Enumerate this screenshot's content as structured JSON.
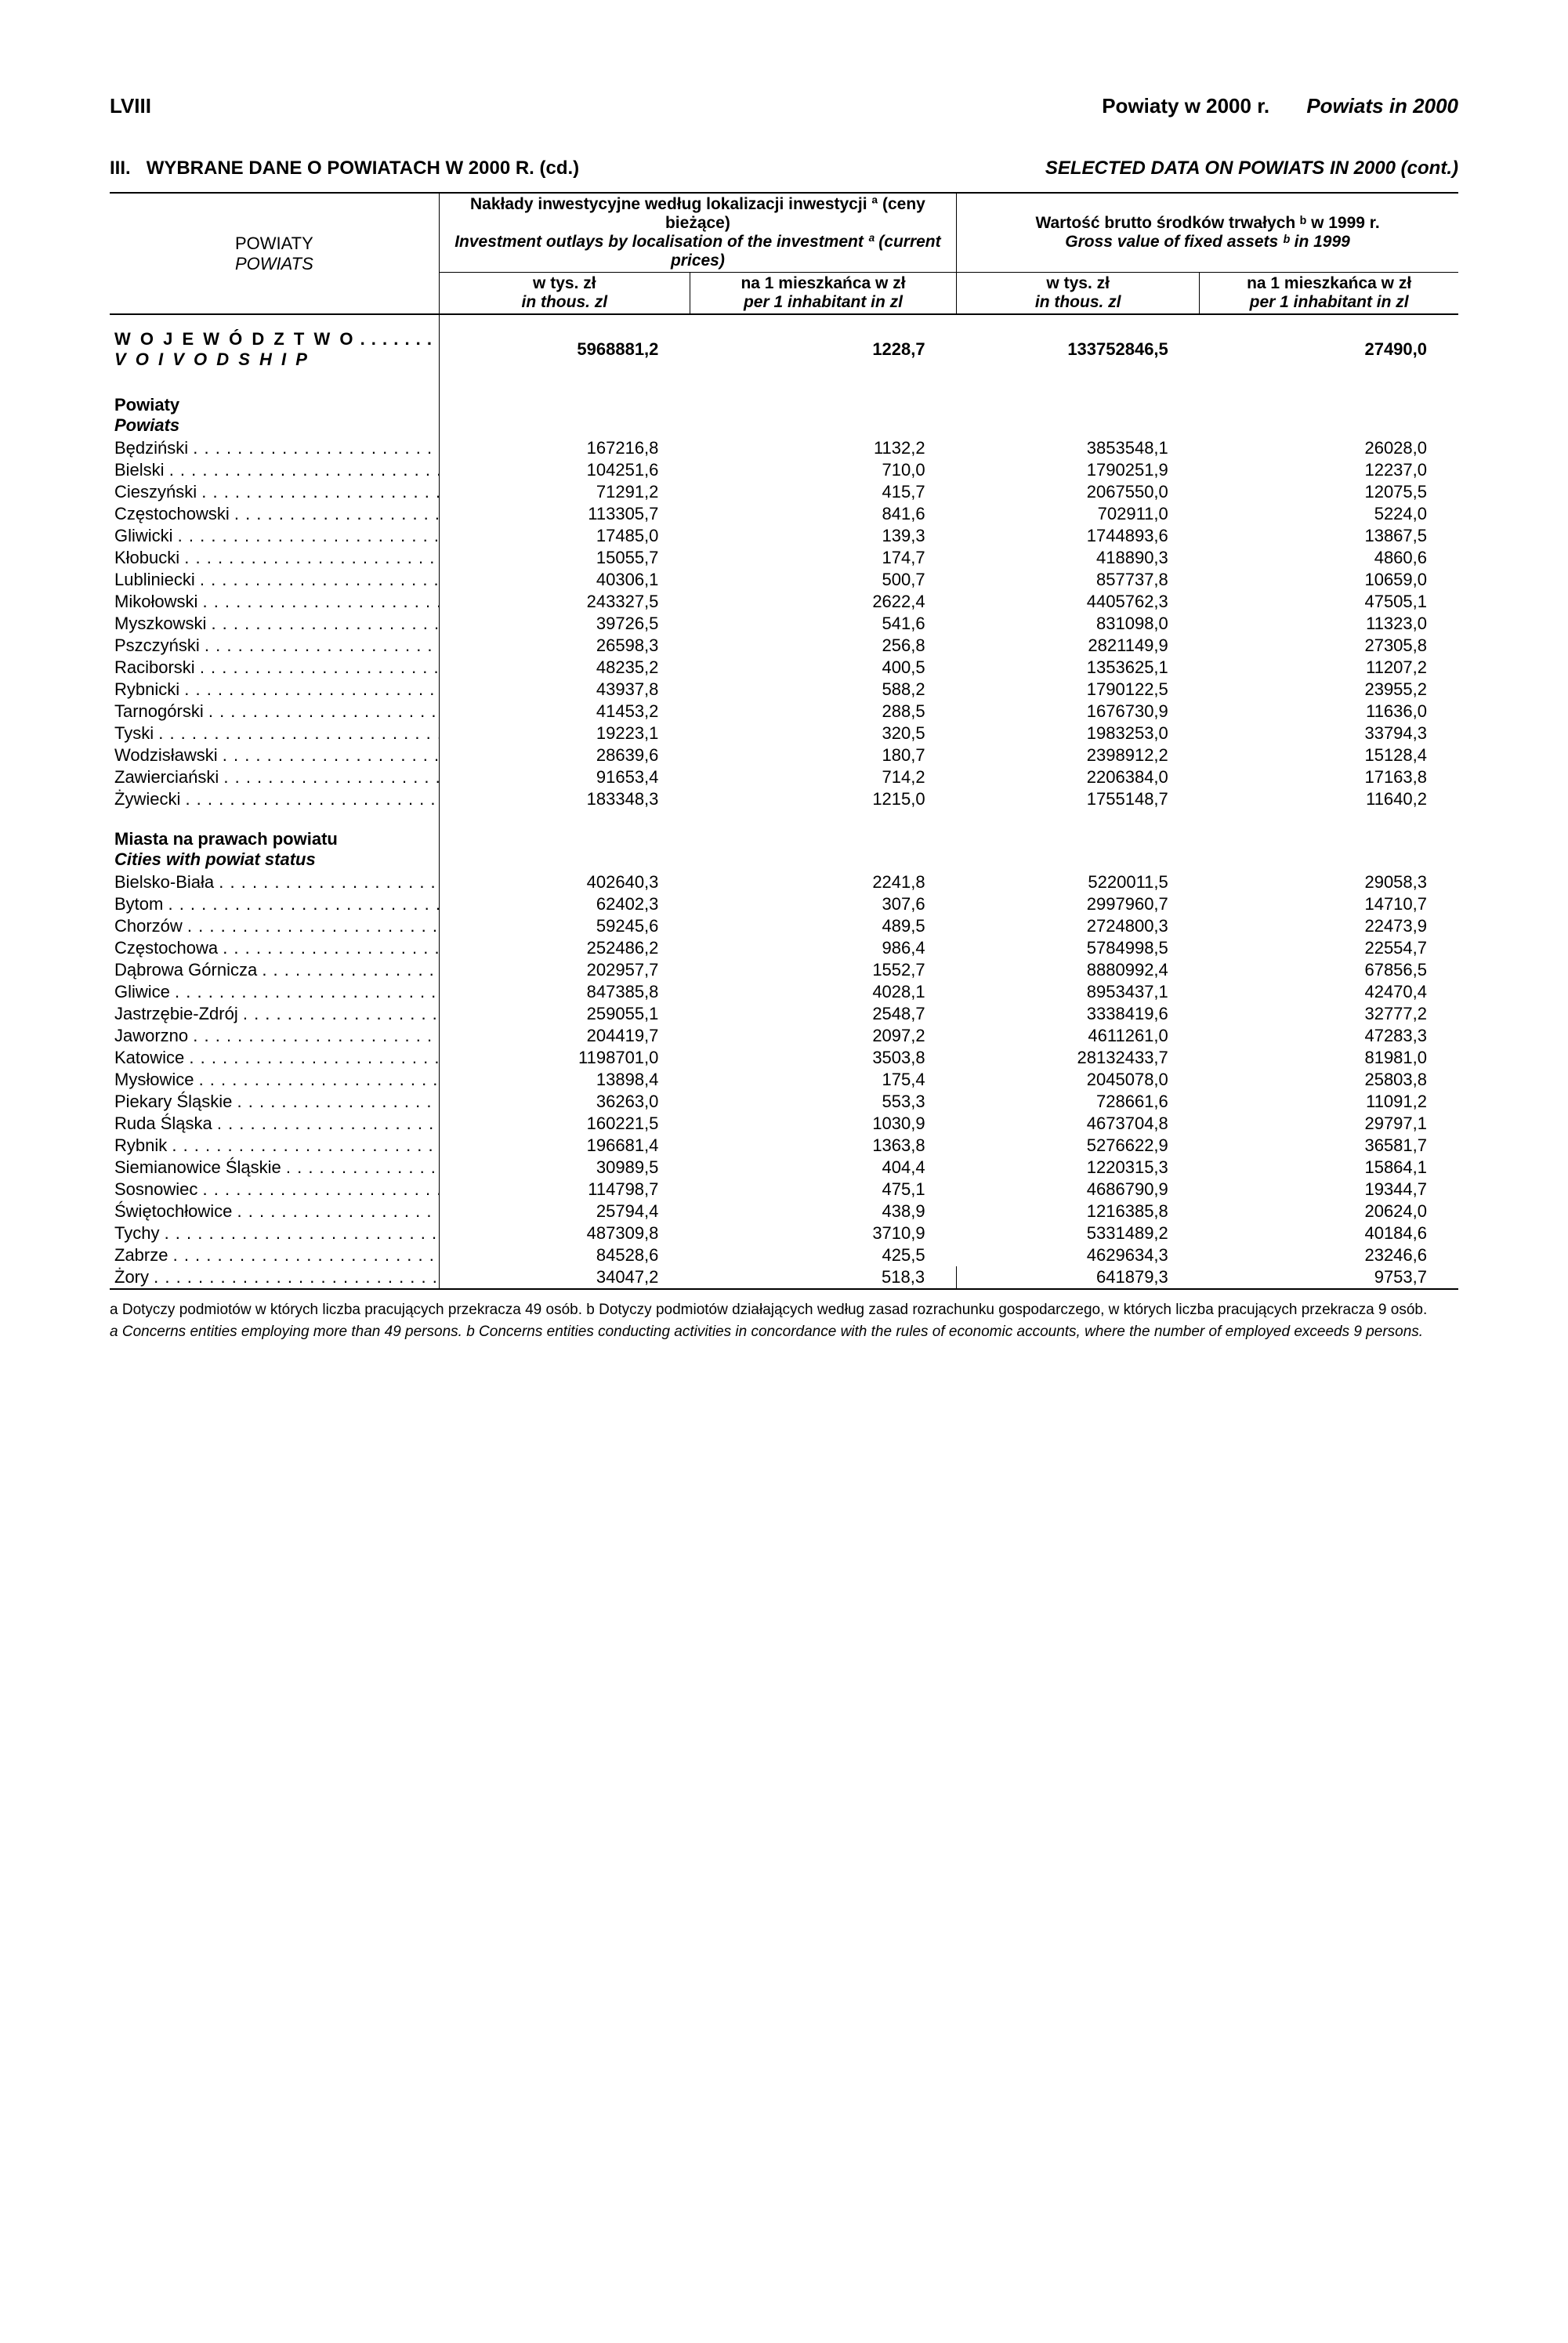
{
  "header": {
    "left": "LVIII",
    "right_plain": "Powiaty w 2000 r.",
    "right_italic": "Powiats in 2000"
  },
  "section": {
    "num": "III.",
    "left": "WYBRANE DANE O POWIATACH W 2000 R. (cd.)",
    "right": "SELECTED DATA ON POWIATS IN 2000 (cont.)"
  },
  "colhead": {
    "left_top": "POWIATY",
    "left_bot": "POWIATS",
    "grpA_top": "Nakłady inwestycyjne według lokalizacji inwestycji ª (ceny bieżące)",
    "grpA_bot": "Investment outlays by localisation of the investment ª (current prices)",
    "grpB_top": "Wartość brutto środków trwałych ᵇ w 1999 r.",
    "grpB_bot": "Gross value of fixed assets ᵇ in 1999",
    "sub1_top": "w tys. zł",
    "sub1_bot": "in thous. zl",
    "sub2_top": "na 1 mieszkańca w zł",
    "sub2_bot": "per 1 inhabitant in zl",
    "sub3_top": "w tys. zł",
    "sub3_bot": "in thous. zl",
    "sub4_top": "na 1 mieszkańca w zł",
    "sub4_bot": "per 1 inhabitant in zl"
  },
  "woj": {
    "name1": "W O J E W Ó D Z T W O",
    "name2": "V O I V O D S H I P",
    "v1": "5968881,2",
    "v2": "1228,7",
    "v3": "133752846,5",
    "v4": "27490,0"
  },
  "sec1": {
    "top": "Powiaty",
    "bot": "Powiats"
  },
  "rows1": [
    {
      "n": "Będziński",
      "v": [
        "167216,8",
        "1132,2",
        "3853548,1",
        "26028,0"
      ]
    },
    {
      "n": "Bielski",
      "v": [
        "104251,6",
        "710,0",
        "1790251,9",
        "12237,0"
      ]
    },
    {
      "n": "Cieszyński",
      "v": [
        "71291,2",
        "415,7",
        "2067550,0",
        "12075,5"
      ]
    },
    {
      "n": "Częstochowski",
      "v": [
        "113305,7",
        "841,6",
        "702911,0",
        "5224,0"
      ]
    },
    {
      "n": "Gliwicki",
      "v": [
        "17485,0",
        "139,3",
        "1744893,6",
        "13867,5"
      ]
    },
    {
      "n": "Kłobucki",
      "v": [
        "15055,7",
        "174,7",
        "418890,3",
        "4860,6"
      ]
    },
    {
      "n": "Lubliniecki",
      "v": [
        "40306,1",
        "500,7",
        "857737,8",
        "10659,0"
      ]
    },
    {
      "n": "Mikołowski",
      "v": [
        "243327,5",
        "2622,4",
        "4405762,3",
        "47505,1"
      ]
    },
    {
      "n": "Myszkowski",
      "v": [
        "39726,5",
        "541,6",
        "831098,0",
        "11323,0"
      ]
    },
    {
      "n": "Pszczyński",
      "v": [
        "26598,3",
        "256,8",
        "2821149,9",
        "27305,8"
      ]
    },
    {
      "n": "Raciborski",
      "v": [
        "48235,2",
        "400,5",
        "1353625,1",
        "11207,2"
      ]
    },
    {
      "n": "Rybnicki",
      "v": [
        "43937,8",
        "588,2",
        "1790122,5",
        "23955,2"
      ]
    },
    {
      "n": "Tarnogórski",
      "v": [
        "41453,2",
        "288,5",
        "1676730,9",
        "11636,0"
      ]
    },
    {
      "n": "Tyski",
      "v": [
        "19223,1",
        "320,5",
        "1983253,0",
        "33794,3"
      ]
    },
    {
      "n": "Wodzisławski",
      "v": [
        "28639,6",
        "180,7",
        "2398912,2",
        "15128,4"
      ]
    },
    {
      "n": "Zawierciański",
      "v": [
        "91653,4",
        "714,2",
        "2206384,0",
        "17163,8"
      ]
    },
    {
      "n": "Żywiecki",
      "v": [
        "183348,3",
        "1215,0",
        "1755148,7",
        "11640,2"
      ]
    }
  ],
  "sec2": {
    "top": "Miasta na prawach powiatu",
    "bot": "Cities with powiat status"
  },
  "rows2": [
    {
      "n": "Bielsko-Biała",
      "v": [
        "402640,3",
        "2241,8",
        "5220011,5",
        "29058,3"
      ]
    },
    {
      "n": "Bytom",
      "v": [
        "62402,3",
        "307,6",
        "2997960,7",
        "14710,7"
      ]
    },
    {
      "n": "Chorzów",
      "v": [
        "59245,6",
        "489,5",
        "2724800,3",
        "22473,9"
      ]
    },
    {
      "n": "Częstochowa",
      "v": [
        "252486,2",
        "986,4",
        "5784998,5",
        "22554,7"
      ]
    },
    {
      "n": "Dąbrowa Górnicza",
      "v": [
        "202957,7",
        "1552,7",
        "8880992,4",
        "67856,5"
      ]
    },
    {
      "n": "Gliwice",
      "v": [
        "847385,8",
        "4028,1",
        "8953437,1",
        "42470,4"
      ]
    },
    {
      "n": "Jastrzębie-Zdrój",
      "v": [
        "259055,1",
        "2548,7",
        "3338419,6",
        "32777,2"
      ]
    },
    {
      "n": "Jaworzno",
      "v": [
        "204419,7",
        "2097,2",
        "4611261,0",
        "47283,3"
      ]
    },
    {
      "n": "Katowice",
      "v": [
        "1198701,0",
        "3503,8",
        "28132433,7",
        "81981,0"
      ]
    },
    {
      "n": "Mysłowice",
      "v": [
        "13898,4",
        "175,4",
        "2045078,0",
        "25803,8"
      ]
    },
    {
      "n": "Piekary Śląskie",
      "v": [
        "36263,0",
        "553,3",
        "728661,6",
        "11091,2"
      ]
    },
    {
      "n": "Ruda Śląska",
      "v": [
        "160221,5",
        "1030,9",
        "4673704,8",
        "29797,1"
      ]
    },
    {
      "n": "Rybnik",
      "v": [
        "196681,4",
        "1363,8",
        "5276622,9",
        "36581,7"
      ]
    },
    {
      "n": "Siemianowice Śląskie",
      "v": [
        "30989,5",
        "404,4",
        "1220315,3",
        "15864,1"
      ]
    },
    {
      "n": "Sosnowiec",
      "v": [
        "114798,7",
        "475,1",
        "4686790,9",
        "19344,7"
      ]
    },
    {
      "n": "Świętochłowice",
      "v": [
        "25794,4",
        "438,9",
        "1216385,8",
        "20624,0"
      ]
    },
    {
      "n": "Tychy",
      "v": [
        "487309,8",
        "3710,9",
        "5331489,2",
        "40184,6"
      ]
    },
    {
      "n": "Zabrze",
      "v": [
        "84528,6",
        "425,5",
        "4629634,3",
        "23246,6"
      ]
    },
    {
      "n": "Żory",
      "v": [
        "34047,2",
        "518,3",
        "641879,3",
        "9753,7"
      ]
    }
  ],
  "footnote": {
    "pl": "a Dotyczy podmiotów w których liczba pracujących przekracza 49 osób. b Dotyczy podmiotów działających według zasad rozrachunku gospodarczego, w których liczba pracujących przekracza 9 osób.",
    "en": "a  Concerns entities employing more than 49 persons.  b  Concerns entities conducting activities in concordance with the rules of economic accounts, where the number of employed exceeds 9 persons."
  },
  "style": {
    "dot_fill": " . . . . . . . . . . . . . . . . . . . . . . . . . . . . ."
  }
}
